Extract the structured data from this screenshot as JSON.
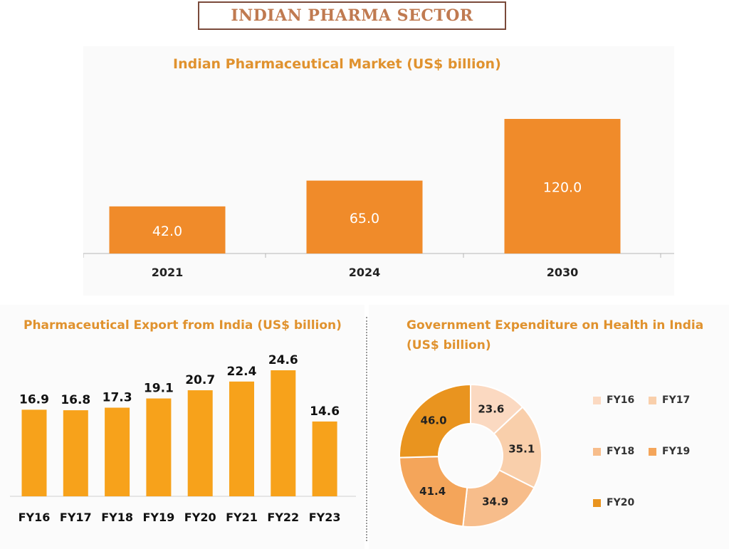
{
  "page_title": "INDIAN PHARMA SECTOR",
  "colors": {
    "bar_dark_orange": "#f08b2a",
    "bar_orange": "#f7a21b",
    "title_orange": "#e0922e",
    "title_brown": "#c07a50"
  },
  "chart_data": [
    {
      "id": "market",
      "type": "bar",
      "title": "Indian Pharmaceutical Market (US$ billion)",
      "categories": [
        "2021",
        "2024",
        "2030"
      ],
      "values": [
        42.0,
        65.0,
        120.0
      ],
      "value_labels": [
        "42.0",
        "65.0",
        "120.0"
      ],
      "ylim": [
        0,
        120
      ]
    },
    {
      "id": "export",
      "type": "bar",
      "title": "Pharmaceutical Export from India (US$ billion)",
      "categories": [
        "FY16",
        "FY17",
        "FY18",
        "FY19",
        "FY20",
        "FY21",
        "FY22",
        "FY23"
      ],
      "values": [
        16.9,
        16.8,
        17.3,
        19.1,
        20.7,
        22.4,
        24.6,
        14.6
      ],
      "value_labels": [
        "16.9",
        "16.8",
        "17.3",
        "19.1",
        "20.7",
        "22.4",
        "24.6",
        "14.6"
      ],
      "ylim": [
        0,
        24.6
      ]
    },
    {
      "id": "health",
      "type": "pie",
      "title_line1": "Government Expenditure on Health in India",
      "title_line2": "(US$ billion)",
      "labels": [
        "FY16",
        "FY17",
        "FY18",
        "FY19",
        "FY20"
      ],
      "values": [
        23.6,
        35.1,
        34.9,
        41.4,
        46.0
      ],
      "value_labels": [
        "23.6",
        "35.1",
        "34.9",
        "41.4",
        "46.0"
      ],
      "colors": [
        "#fbd9c1",
        "#f9cfab",
        "#f7bd8b",
        "#f4a55a",
        "#e9941f"
      ],
      "legend_position": "right"
    }
  ]
}
